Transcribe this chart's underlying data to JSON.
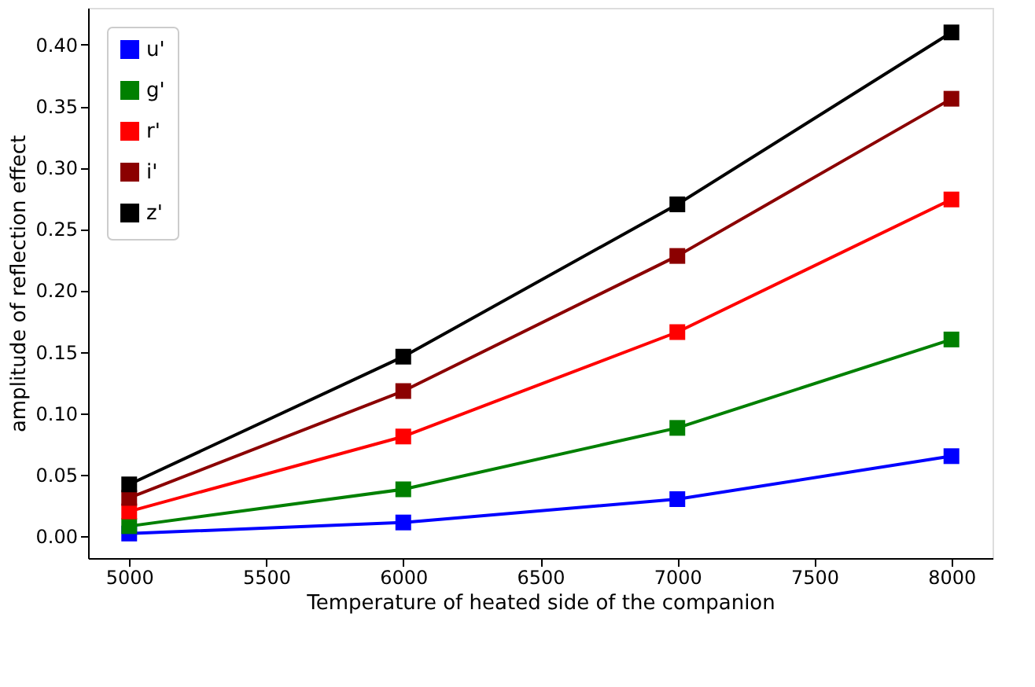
{
  "chart_data": {
    "type": "line",
    "xlabel": "Temperature of heated side of the companion",
    "ylabel": "amplitude of reflection effect",
    "x": [
      5000,
      6000,
      7000,
      8000
    ],
    "series": [
      {
        "name": "u'",
        "color": "#0000ff",
        "values": [
          0.002,
          0.011,
          0.03,
          0.065
        ]
      },
      {
        "name": "g'",
        "color": "#008000",
        "values": [
          0.008,
          0.038,
          0.088,
          0.16
        ]
      },
      {
        "name": "r'",
        "color": "#ff0000",
        "values": [
          0.02,
          0.081,
          0.166,
          0.274
        ]
      },
      {
        "name": "i'",
        "color": "#8b0000",
        "values": [
          0.031,
          0.118,
          0.228,
          0.356
        ]
      },
      {
        "name": "z'",
        "color": "#000000",
        "values": [
          0.042,
          0.146,
          0.27,
          0.41
        ]
      }
    ],
    "xlim": [
      4850,
      8150
    ],
    "xticks": [
      5000,
      5500,
      6000,
      6500,
      7000,
      7500,
      8000
    ],
    "ylim": [
      -0.018,
      0.43
    ],
    "yticks": [
      {
        "value": 0,
        "label": "0.00"
      },
      0.05,
      {
        "value": 0.1,
        "label": "0.10"
      },
      0.15,
      {
        "value": 0.2,
        "label": "0.20"
      },
      0.25,
      {
        "value": 0.3,
        "label": "0.30"
      },
      0.35,
      {
        "value": 0.4,
        "label": "0.40"
      }
    ],
    "grid": false,
    "legend": "top left",
    "marker": "square",
    "line_style": "solid"
  }
}
